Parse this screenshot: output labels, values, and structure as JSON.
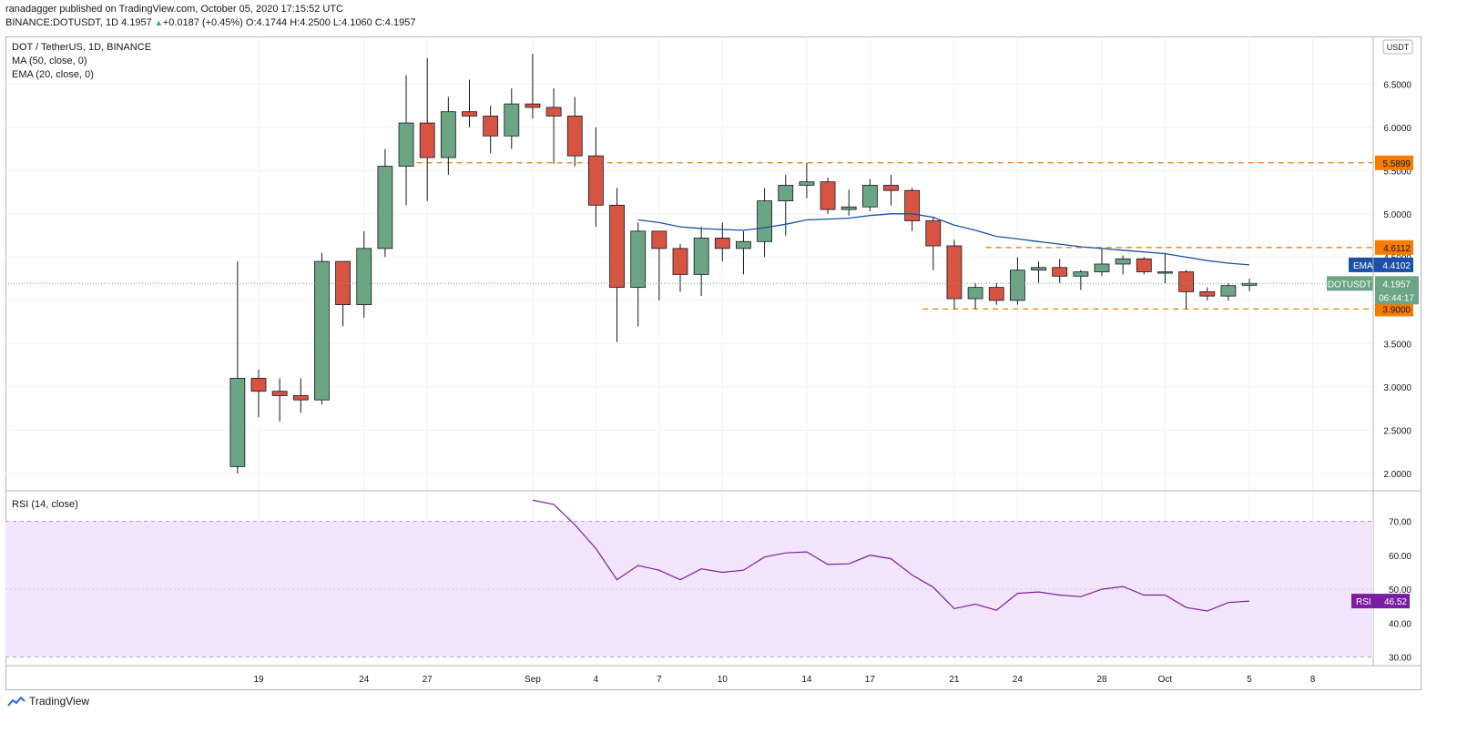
{
  "header": {
    "line1": "ranadagger published on TradingView.com, October 05, 2020 17:15:52 UTC",
    "symbol": "BINANCE:DOTUSDT, 1D",
    "last": "4.1957",
    "change": "+0.0187 (+0.45%)",
    "ohlc": "O:4.1744 H:4.2500 L:4.1060 C:4.1957"
  },
  "legend": {
    "title": "DOT / TetherUS, 1D, BINANCE",
    "ma": "MA (50, close, 0)",
    "ema": "EMA (20, close, 0)",
    "rsi": "RSI (14, close)"
  },
  "footer": {
    "brand": "TradingView"
  },
  "colors": {
    "up": "#6ba583",
    "down": "#d75442",
    "ema": "#1c4fa6",
    "rsi": "#7b1fa2",
    "rsi_band": "#f3e5fb",
    "level": "#f57c00",
    "price_tag": "#6ba583",
    "ema_tag": "#1c4fa6"
  },
  "chart_data": [
    {
      "type": "candlestick",
      "title": "DOT / TetherUS, 1D, BINANCE",
      "unit": "USDT",
      "ylim": [
        1.8,
        7.05
      ],
      "y_ticks": [
        "2.0000",
        "2.5000",
        "3.0000",
        "3.5000",
        "4.0000",
        "4.5000",
        "5.0000",
        "5.5000",
        "6.0000",
        "6.5000"
      ],
      "x_ticks": [
        {
          "day": 0,
          "label": "19"
        },
        {
          "day": 5,
          "label": "24"
        },
        {
          "day": 8,
          "label": "27"
        },
        {
          "day": 13,
          "label": "Sep"
        },
        {
          "day": 16,
          "label": "4"
        },
        {
          "day": 19,
          "label": "7"
        },
        {
          "day": 22,
          "label": "10"
        },
        {
          "day": 26,
          "label": "14"
        },
        {
          "day": 29,
          "label": "17"
        },
        {
          "day": 33,
          "label": "21"
        },
        {
          "day": 36,
          "label": "24"
        },
        {
          "day": 40,
          "label": "28"
        },
        {
          "day": 43,
          "label": "Oct"
        },
        {
          "day": 47,
          "label": "5"
        },
        {
          "day": 50,
          "label": "8"
        }
      ],
      "candles": [
        {
          "day": -1,
          "o": 2.08,
          "h": 4.45,
          "l": 2.0,
          "c": 3.1
        },
        {
          "day": 0,
          "o": 3.1,
          "h": 3.2,
          "l": 2.65,
          "c": 2.95
        },
        {
          "day": 1,
          "o": 2.95,
          "h": 3.1,
          "l": 2.6,
          "c": 2.9
        },
        {
          "day": 2,
          "o": 2.9,
          "h": 3.1,
          "l": 2.7,
          "c": 2.85
        },
        {
          "day": 3,
          "o": 2.85,
          "h": 4.55,
          "l": 2.8,
          "c": 4.45
        },
        {
          "day": 4,
          "o": 4.45,
          "h": 4.45,
          "l": 3.7,
          "c": 3.95
        },
        {
          "day": 5,
          "o": 3.95,
          "h": 4.8,
          "l": 3.8,
          "c": 4.6
        },
        {
          "day": 6,
          "o": 4.6,
          "h": 5.75,
          "l": 4.5,
          "c": 5.55
        },
        {
          "day": 7,
          "o": 5.55,
          "h": 6.6,
          "l": 5.1,
          "c": 6.05
        },
        {
          "day": 8,
          "o": 6.05,
          "h": 6.8,
          "l": 5.15,
          "c": 5.65
        },
        {
          "day": 9,
          "o": 5.65,
          "h": 6.35,
          "l": 5.45,
          "c": 6.18
        },
        {
          "day": 10,
          "o": 6.18,
          "h": 6.55,
          "l": 6.0,
          "c": 6.13
        },
        {
          "day": 11,
          "o": 6.13,
          "h": 6.25,
          "l": 5.7,
          "c": 5.9
        },
        {
          "day": 12,
          "o": 5.9,
          "h": 6.45,
          "l": 5.75,
          "c": 6.27
        },
        {
          "day": 13,
          "o": 6.27,
          "h": 6.85,
          "l": 6.1,
          "c": 6.23
        },
        {
          "day": 14,
          "o": 6.23,
          "h": 6.45,
          "l": 5.58,
          "c": 6.13
        },
        {
          "day": 15,
          "o": 6.13,
          "h": 6.35,
          "l": 5.55,
          "c": 5.67
        },
        {
          "day": 16,
          "o": 5.67,
          "h": 6.0,
          "l": 4.85,
          "c": 5.1
        },
        {
          "day": 17,
          "o": 5.1,
          "h": 5.3,
          "l": 3.52,
          "c": 4.15
        },
        {
          "day": 18,
          "o": 4.15,
          "h": 4.9,
          "l": 3.7,
          "c": 4.8
        },
        {
          "day": 19,
          "o": 4.8,
          "h": 4.8,
          "l": 4.0,
          "c": 4.6
        },
        {
          "day": 20,
          "o": 4.6,
          "h": 4.65,
          "l": 4.1,
          "c": 4.3
        },
        {
          "day": 21,
          "o": 4.3,
          "h": 4.85,
          "l": 4.05,
          "c": 4.72
        },
        {
          "day": 22,
          "o": 4.72,
          "h": 4.9,
          "l": 4.45,
          "c": 4.6
        },
        {
          "day": 23,
          "o": 4.6,
          "h": 4.8,
          "l": 4.3,
          "c": 4.68
        },
        {
          "day": 24,
          "o": 4.68,
          "h": 5.3,
          "l": 4.5,
          "c": 5.15
        },
        {
          "day": 25,
          "o": 5.15,
          "h": 5.45,
          "l": 4.75,
          "c": 5.33
        },
        {
          "day": 26,
          "o": 5.33,
          "h": 5.59,
          "l": 5.18,
          "c": 5.37
        },
        {
          "day": 27,
          "o": 5.37,
          "h": 5.42,
          "l": 5.0,
          "c": 5.05
        },
        {
          "day": 28,
          "o": 5.05,
          "h": 5.28,
          "l": 4.98,
          "c": 5.08
        },
        {
          "day": 29,
          "o": 5.08,
          "h": 5.4,
          "l": 5.03,
          "c": 5.33
        },
        {
          "day": 30,
          "o": 5.33,
          "h": 5.45,
          "l": 5.1,
          "c": 5.27
        },
        {
          "day": 31,
          "o": 5.27,
          "h": 5.3,
          "l": 4.8,
          "c": 4.92
        },
        {
          "day": 32,
          "o": 4.92,
          "h": 4.97,
          "l": 4.35,
          "c": 4.63
        },
        {
          "day": 33,
          "o": 4.63,
          "h": 4.7,
          "l": 3.9,
          "c": 4.02
        },
        {
          "day": 34,
          "o": 4.02,
          "h": 4.2,
          "l": 3.9,
          "c": 4.15
        },
        {
          "day": 35,
          "o": 4.15,
          "h": 4.2,
          "l": 3.95,
          "c": 4.0
        },
        {
          "day": 36,
          "o": 4.0,
          "h": 4.5,
          "l": 3.95,
          "c": 4.35
        },
        {
          "day": 37,
          "o": 4.35,
          "h": 4.45,
          "l": 4.2,
          "c": 4.38
        },
        {
          "day": 38,
          "o": 4.38,
          "h": 4.48,
          "l": 4.2,
          "c": 4.28
        },
        {
          "day": 39,
          "o": 4.28,
          "h": 4.35,
          "l": 4.12,
          "c": 4.33
        },
        {
          "day": 40,
          "o": 4.33,
          "h": 4.6,
          "l": 4.28,
          "c": 4.42
        },
        {
          "day": 41,
          "o": 4.42,
          "h": 4.52,
          "l": 4.3,
          "c": 4.48
        },
        {
          "day": 42,
          "o": 4.48,
          "h": 4.5,
          "l": 4.3,
          "c": 4.33
        },
        {
          "day": 43,
          "o": 4.33,
          "h": 4.55,
          "l": 4.2,
          "c": 4.33
        },
        {
          "day": 44,
          "o": 4.33,
          "h": 4.35,
          "l": 3.9,
          "c": 4.1
        },
        {
          "day": 45,
          "o": 4.1,
          "h": 4.15,
          "l": 4.0,
          "c": 4.05
        },
        {
          "day": 46,
          "o": 4.05,
          "h": 4.2,
          "l": 4.0,
          "c": 4.17
        },
        {
          "day": 47,
          "o": 4.1744,
          "h": 4.25,
          "l": 4.106,
          "c": 4.1957
        }
      ],
      "ema": [
        [
          18,
          4.93
        ],
        [
          19,
          4.9
        ],
        [
          20,
          4.85
        ],
        [
          21,
          4.83
        ],
        [
          22,
          4.82
        ],
        [
          23,
          4.81
        ],
        [
          24,
          4.84
        ],
        [
          25,
          4.88
        ],
        [
          26,
          4.93
        ],
        [
          27,
          4.94
        ],
        [
          28,
          4.95
        ],
        [
          29,
          4.98
        ],
        [
          30,
          5.0
        ],
        [
          31,
          5.0
        ],
        [
          32,
          4.96
        ],
        [
          33,
          4.87
        ],
        [
          34,
          4.81
        ],
        [
          35,
          4.74
        ],
        [
          36,
          4.71
        ],
        [
          37,
          4.68
        ],
        [
          38,
          4.65
        ],
        [
          39,
          4.62
        ],
        [
          40,
          4.6
        ],
        [
          41,
          4.58
        ],
        [
          42,
          4.56
        ],
        [
          43,
          4.54
        ],
        [
          44,
          4.5
        ],
        [
          45,
          4.46
        ],
        [
          46,
          4.43
        ],
        [
          47,
          4.41
        ]
      ],
      "levels": [
        {
          "value": 5.5899,
          "label": "5.5899",
          "from_day": 7.5
        },
        {
          "value": 4.6112,
          "label": "4.6112",
          "from_day": 34.5
        },
        {
          "value": 3.9,
          "label": "3.9000",
          "from_day": 31.5
        }
      ],
      "tags": {
        "ema_name": "EMA",
        "ema_value": "4.4102",
        "symbol": "DOTUSDT",
        "price": "4.1957",
        "countdown": "06:44:17"
      }
    },
    {
      "type": "line",
      "title": "RSI (14, close)",
      "ylim": [
        27.5,
        79
      ],
      "y_ticks": [
        "30.00",
        "40.00",
        "50.00",
        "60.00",
        "70.00"
      ],
      "band": [
        30,
        70
      ],
      "mid": 50,
      "series": [
        {
          "name": "RSI",
          "points": [
            [
              13,
              76.2
            ],
            [
              14,
              75.0
            ],
            [
              15,
              69.0
            ],
            [
              16,
              62.0
            ],
            [
              17,
              52.8
            ],
            [
              18,
              57.0
            ],
            [
              19,
              55.6
            ],
            [
              20,
              52.8
            ],
            [
              21,
              56.0
            ],
            [
              22,
              55.0
            ],
            [
              23,
              55.6
            ],
            [
              24,
              59.5
            ],
            [
              25,
              60.7
            ],
            [
              26,
              61.0
            ],
            [
              27,
              57.3
            ],
            [
              28,
              57.5
            ],
            [
              29,
              60.0
            ],
            [
              30,
              59.0
            ],
            [
              31,
              54.2
            ],
            [
              32,
              50.6
            ],
            [
              33,
              44.3
            ],
            [
              34,
              45.6
            ],
            [
              35,
              43.8
            ],
            [
              36,
              48.8
            ],
            [
              37,
              49.2
            ],
            [
              38,
              48.3
            ],
            [
              39,
              47.8
            ],
            [
              40,
              50.0
            ],
            [
              41,
              50.8
            ],
            [
              42,
              48.3
            ],
            [
              43,
              48.3
            ],
            [
              44,
              44.6
            ],
            [
              45,
              43.6
            ],
            [
              46,
              46.1
            ],
            [
              47,
              46.52
            ]
          ]
        }
      ],
      "tag": {
        "name": "RSI",
        "value": "46.52"
      }
    }
  ]
}
